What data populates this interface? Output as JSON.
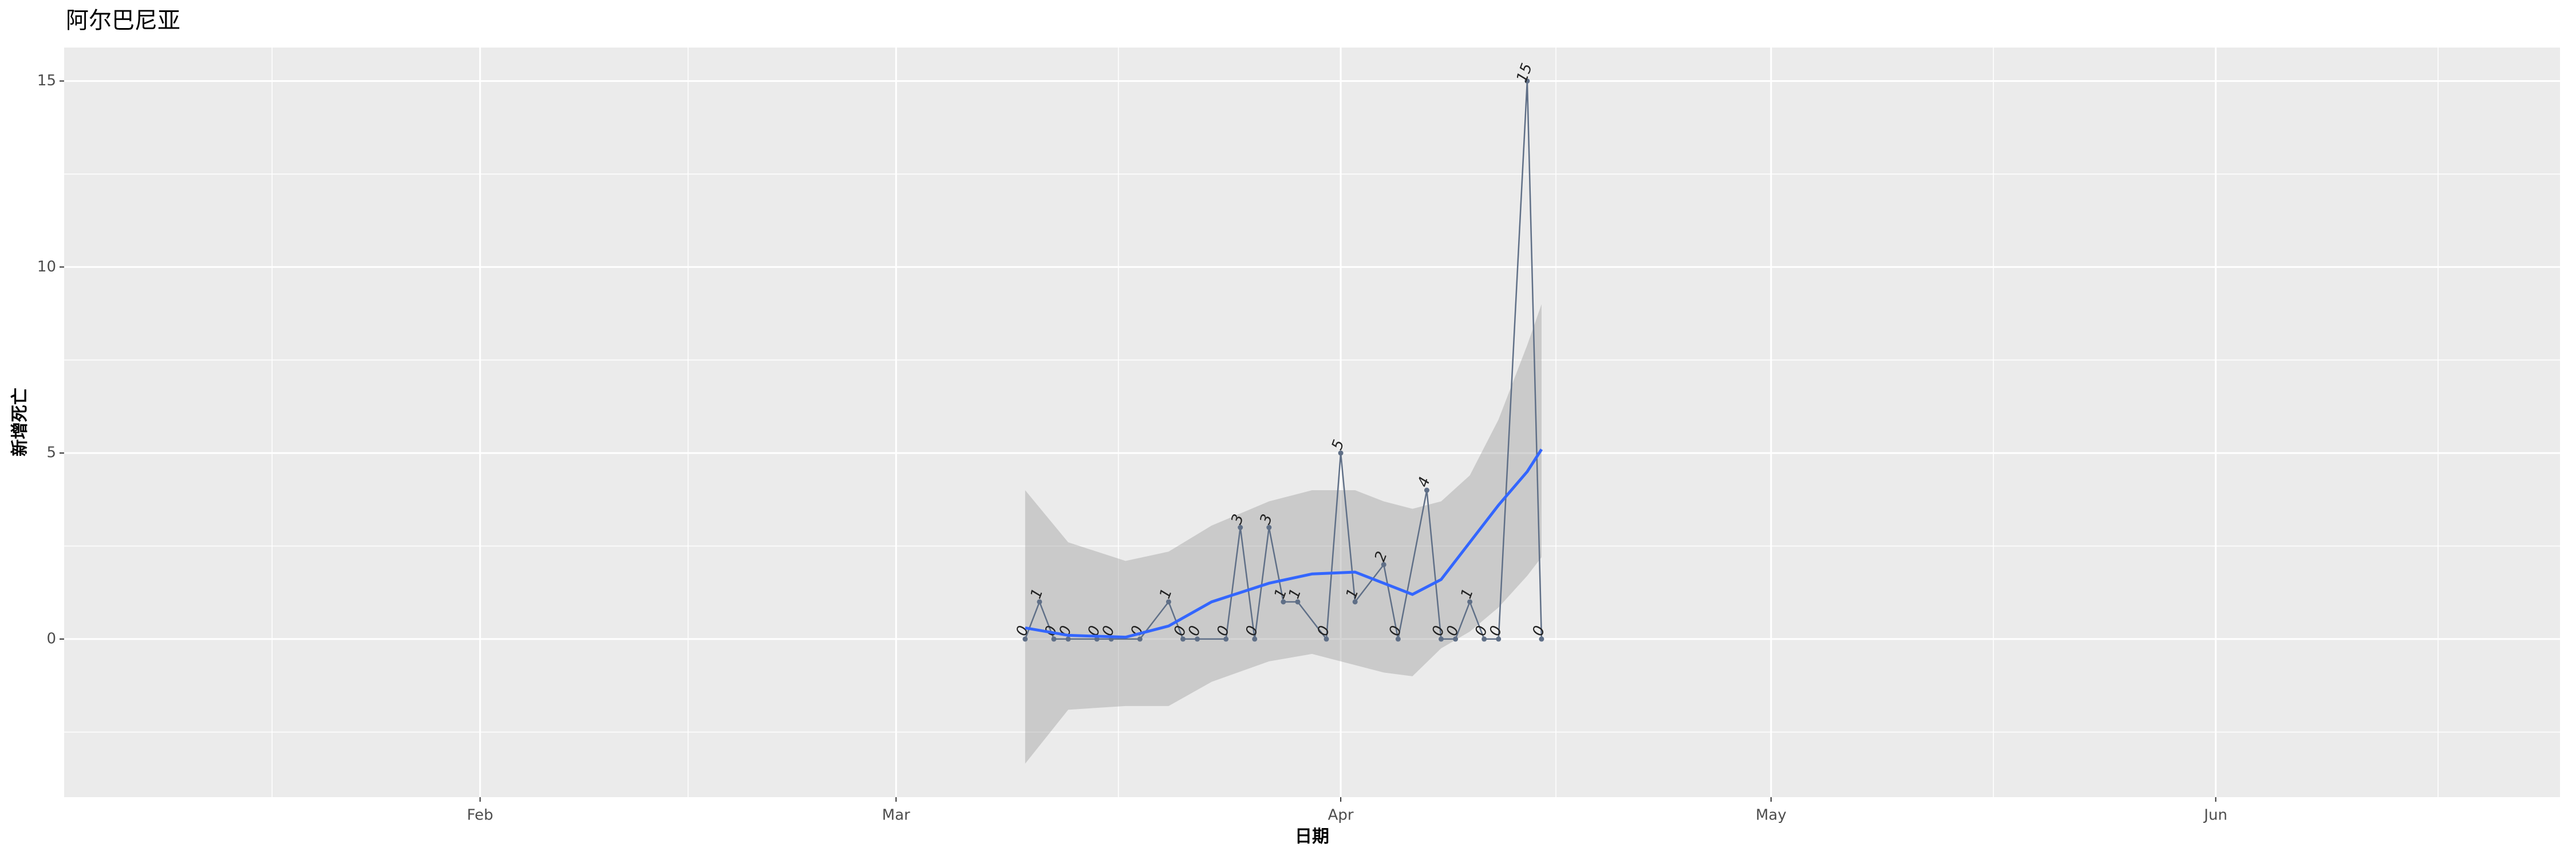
{
  "chart_data": {
    "type": "line",
    "title": "阿尔巴尼亚",
    "xlabel": "日期",
    "ylabel": "新增死亡",
    "series": [
      {
        "color": "#5f6f87",
        "x": [
          70,
          71,
          72,
          73,
          75,
          76,
          78,
          80,
          81,
          82,
          84,
          85,
          86,
          87,
          88,
          89,
          91,
          92,
          93,
          95,
          96,
          98,
          99,
          100,
          101,
          102,
          103,
          105,
          106
        ],
        "values": [
          0,
          1,
          0,
          0,
          0,
          0,
          0,
          1,
          0,
          0,
          0,
          3,
          0,
          3,
          1,
          1,
          0,
          5,
          1,
          2,
          0,
          4,
          0,
          0,
          1,
          0,
          0,
          15,
          0
        ]
      }
    ],
    "smooth": {
      "color": "#3366ff",
      "band_color": "#999999",
      "x": [
        70,
        73,
        77,
        80,
        83,
        87,
        90,
        93,
        95,
        97,
        99,
        101,
        103,
        105,
        106
      ],
      "values": [
        0.3,
        0.1,
        0.05,
        0.35,
        1.0,
        1.5,
        1.75,
        1.8,
        1.5,
        1.2,
        1.6,
        2.6,
        3.6,
        4.5,
        5.1
      ],
      "upper": [
        4.0,
        2.6,
        2.1,
        2.35,
        3.05,
        3.7,
        4.0,
        4.0,
        3.7,
        3.5,
        3.7,
        4.4,
        5.9,
        7.9,
        9.0
      ],
      "lower": [
        -3.35,
        -1.9,
        -1.8,
        -1.8,
        -1.15,
        -0.6,
        -0.4,
        -0.7,
        -0.9,
        -1.0,
        -0.25,
        0.2,
        0.85,
        1.7,
        2.2
      ]
    },
    "xlim": [
      3,
      177
    ],
    "xticks": [
      {
        "value": 32,
        "label": "Feb"
      },
      {
        "value": 61,
        "label": "Mar"
      },
      {
        "value": 92,
        "label": "Apr"
      },
      {
        "value": 122,
        "label": "May"
      },
      {
        "value": 153,
        "label": "Jun"
      }
    ],
    "ylim": [
      -4.25,
      15.9
    ],
    "yticks": [
      0,
      5,
      10,
      15
    ],
    "grid": true
  }
}
